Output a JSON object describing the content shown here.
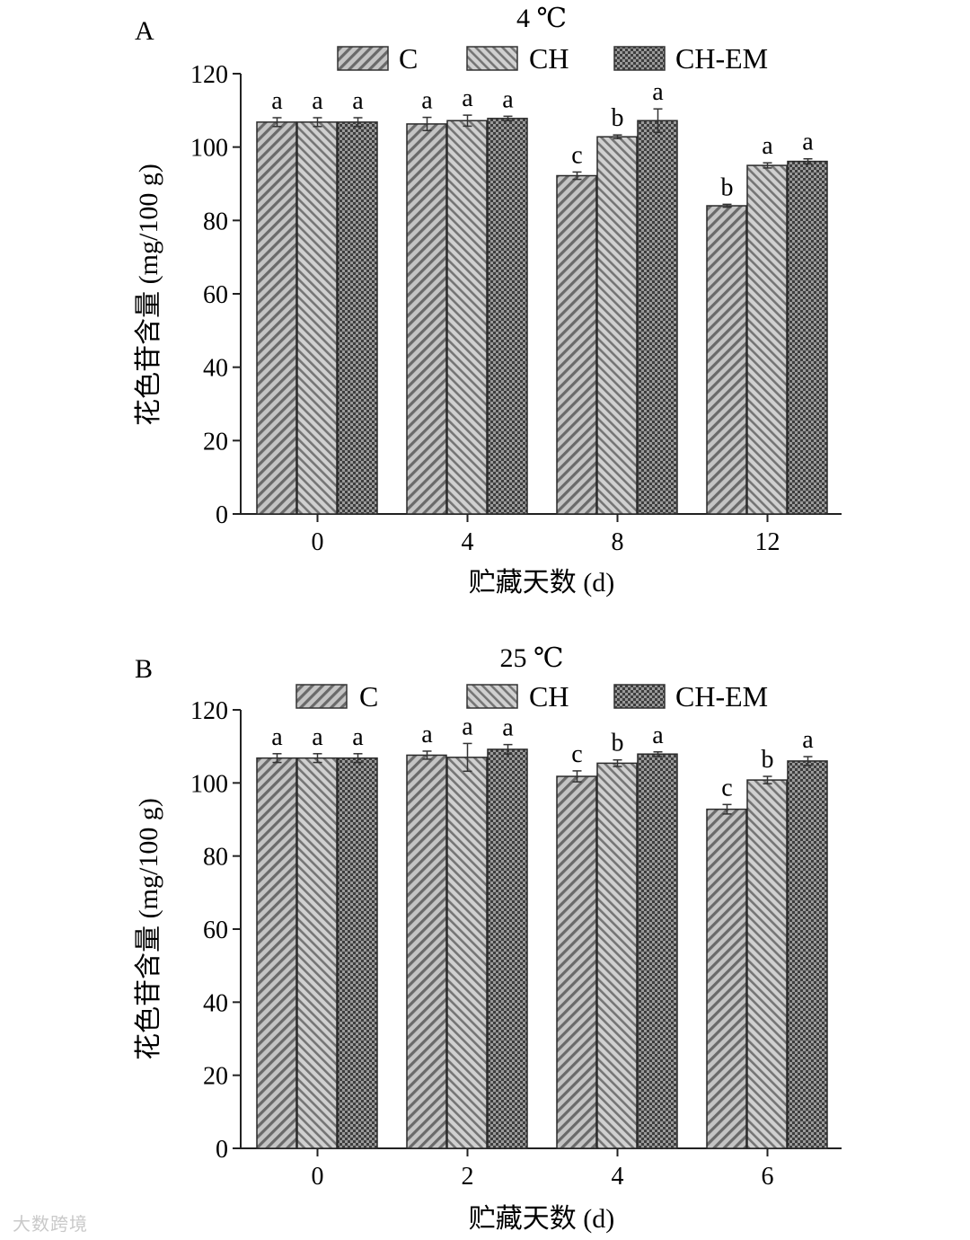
{
  "watermark": "大数跨境",
  "colors": {
    "C": "#a9a9a9",
    "CH": "#b7b7b7",
    "CH-EM": "#7d7d7d"
  },
  "patterns": {
    "C": "diagonal-hatch",
    "CH": "diagonal-hatch-dense",
    "CH-EM": "checker"
  },
  "chart_data": [
    {
      "type": "bar",
      "panel": "A",
      "title": "4 ℃",
      "xlabel": "贮藏天数 (d)",
      "ylabel": "花色苷含量 (mg/100 g)",
      "ylim": [
        0,
        120
      ],
      "yticks": [
        0,
        20,
        40,
        60,
        80,
        100,
        120
      ],
      "grid": false,
      "legend": "top",
      "categories": [
        "0",
        "4",
        "8",
        "12"
      ],
      "series": [
        {
          "name": "C",
          "values": [
            106.8,
            106.3,
            92.2,
            84.0
          ],
          "errors": [
            1.2,
            1.8,
            1.0,
            0.4
          ],
          "labels": [
            "a",
            "a",
            "c",
            "b"
          ]
        },
        {
          "name": "CH",
          "values": [
            106.8,
            107.2,
            102.8,
            95.0
          ],
          "errors": [
            1.2,
            1.5,
            0.5,
            0.7
          ],
          "labels": [
            "a",
            "a",
            "b",
            "a"
          ]
        },
        {
          "name": "CH-EM",
          "values": [
            106.8,
            107.8,
            107.2,
            96.1
          ],
          "errors": [
            1.2,
            0.6,
            3.2,
            0.7
          ],
          "labels": [
            "a",
            "a",
            "a",
            "a"
          ]
        }
      ]
    },
    {
      "type": "bar",
      "panel": "B",
      "title": "25 ℃",
      "xlabel": "贮藏天数 (d)",
      "ylabel": "花色苷含量 (mg/100 g)",
      "ylim": [
        0,
        120
      ],
      "yticks": [
        0,
        20,
        40,
        60,
        80,
        100,
        120
      ],
      "grid": false,
      "legend": "top",
      "categories": [
        "0",
        "2",
        "4",
        "6"
      ],
      "series": [
        {
          "name": "C",
          "values": [
            106.8,
            107.6,
            101.8,
            92.8
          ],
          "errors": [
            1.2,
            1.1,
            1.5,
            1.3
          ],
          "labels": [
            "a",
            "a",
            "c",
            "c"
          ]
        },
        {
          "name": "CH",
          "values": [
            106.8,
            107.0,
            105.4,
            100.8
          ],
          "errors": [
            1.2,
            3.8,
            0.9,
            1.0
          ],
          "labels": [
            "a",
            "a",
            "b",
            "b"
          ]
        },
        {
          "name": "CH-EM",
          "values": [
            106.8,
            109.2,
            107.9,
            106.0
          ],
          "errors": [
            1.2,
            1.3,
            0.6,
            1.2
          ],
          "labels": [
            "a",
            "a",
            "a",
            "a"
          ]
        }
      ]
    }
  ]
}
